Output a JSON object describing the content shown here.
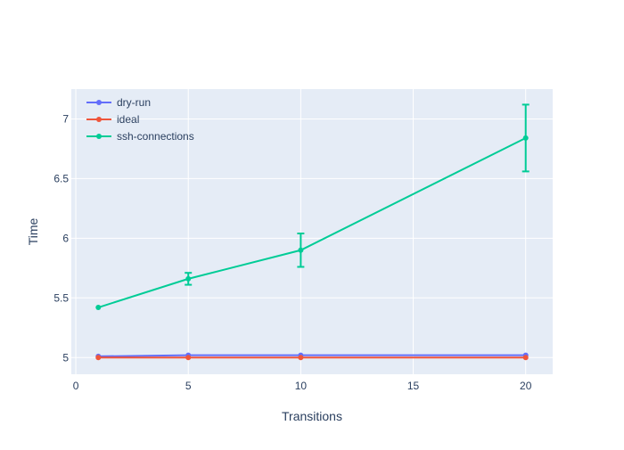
{
  "chart_data": {
    "type": "line",
    "title": "",
    "xlabel": "Transitions",
    "ylabel": "Time",
    "xlim": [
      -0.2,
      21.2
    ],
    "ylim": [
      4.86,
      7.25
    ],
    "x_ticks": [
      0,
      5,
      10,
      15,
      20
    ],
    "y_ticks": [
      5,
      5.5,
      6,
      6.5,
      7
    ],
    "x_tick_labels": [
      "0",
      "5",
      "10",
      "15",
      "20"
    ],
    "y_tick_labels": [
      "5",
      "5.5",
      "6",
      "6.5",
      "7"
    ],
    "grid": true,
    "legend_position": "top-left",
    "plot_background": "#e5ecf6",
    "x": [
      1,
      5,
      10,
      20
    ],
    "series": [
      {
        "name": "dry-run",
        "color": "#636efa",
        "values": [
          5.01,
          5.02,
          5.02,
          5.02
        ]
      },
      {
        "name": "ideal",
        "color": "#ef553b",
        "values": [
          5.0,
          5.0,
          5.0,
          5.0
        ]
      },
      {
        "name": "ssh-connections",
        "color": "#00cc96",
        "values": [
          5.42,
          5.66,
          5.9,
          6.84
        ],
        "error": [
          0.0,
          0.05,
          0.14,
          0.28
        ]
      }
    ]
  }
}
